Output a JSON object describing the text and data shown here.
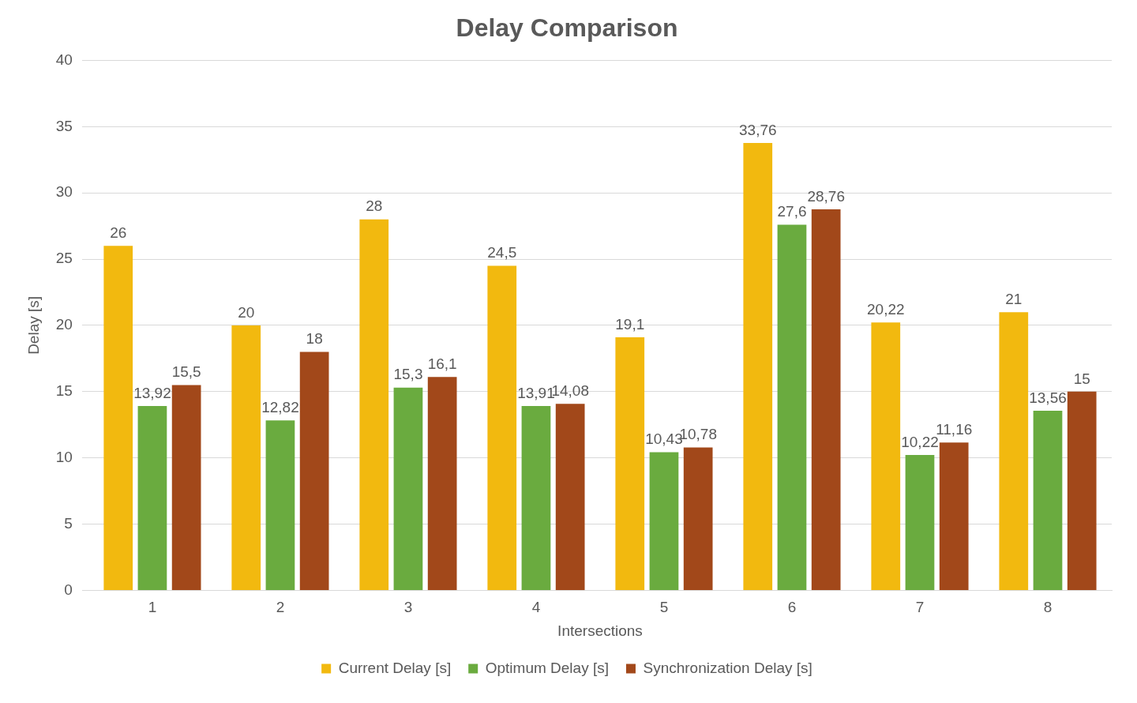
{
  "chart_data": {
    "type": "bar",
    "title": "Delay Comparison",
    "xlabel": "Intersections",
    "ylabel": "Delay [s]",
    "categories": [
      "1",
      "2",
      "3",
      "4",
      "5",
      "6",
      "7",
      "8"
    ],
    "series": [
      {
        "name": "Current Delay [s]",
        "color": "#f2b90f",
        "values": [
          26,
          20,
          28,
          24.5,
          19.1,
          33.76,
          20.22,
          21
        ],
        "value_labels": [
          "26",
          "20",
          "28",
          "24,5",
          "19,1",
          "33,76",
          "20,22",
          "21"
        ]
      },
      {
        "name": "Optimum Delay [s]",
        "color": "#6aab3f",
        "values": [
          13.92,
          12.82,
          15.3,
          13.91,
          10.43,
          27.6,
          10.22,
          13.56
        ],
        "value_labels": [
          "13,92",
          "12,82",
          "15,3",
          "13,91",
          "10,43",
          "27,6",
          "10,22",
          "13,56"
        ]
      },
      {
        "name": "Synchronization Delay [s]",
        "color": "#a2481a",
        "values": [
          15.5,
          18,
          16.1,
          14.08,
          10.78,
          28.76,
          11.16,
          15
        ],
        "value_labels": [
          "15,5",
          "18",
          "16,1",
          "14,08",
          "10,78",
          "28,76",
          "11,16",
          "15"
        ]
      }
    ],
    "ylim": [
      0,
      40
    ],
    "yticks": [
      0,
      5,
      10,
      15,
      20,
      25,
      30,
      35,
      40
    ],
    "grid": "y",
    "legend": "bottom"
  }
}
